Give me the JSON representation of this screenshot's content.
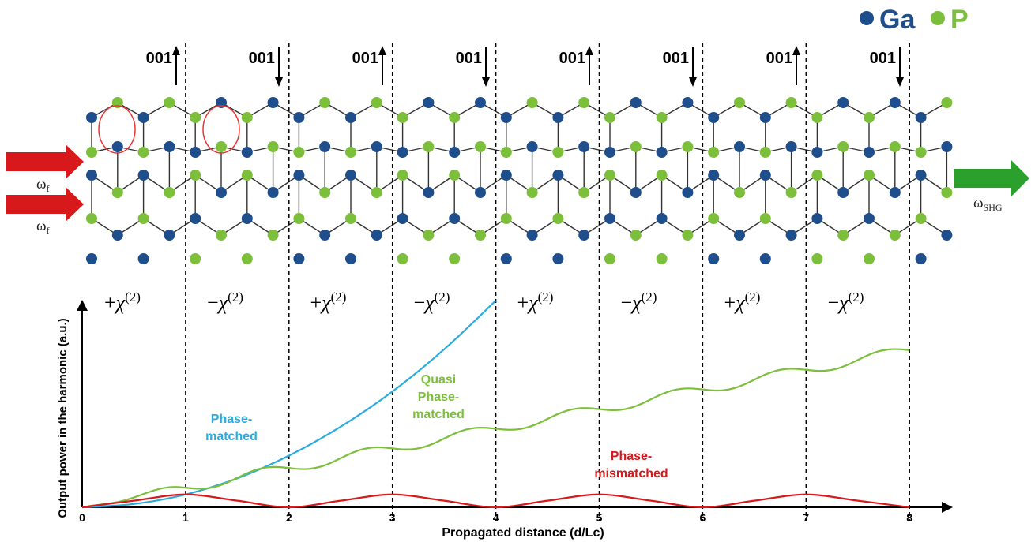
{
  "legend": {
    "ga_label": "Ga",
    "p_label": "P",
    "ga_color": "#1f4e8c",
    "p_color": "#7cbf3b"
  },
  "domains": {
    "orientation_labels": [
      "001",
      "001̅",
      "001",
      "001̅",
      "001",
      "001̅",
      "001",
      "001̅"
    ],
    "arrow_directions": [
      "up",
      "down",
      "up",
      "down",
      "up",
      "down",
      "up",
      "down"
    ],
    "chi_signs": [
      "+",
      "−",
      "+",
      "−",
      "+",
      "−",
      "+",
      "−"
    ],
    "chi_symbol": "χ",
    "chi_superscript": "(2)"
  },
  "beams": {
    "input_label_main": "ω",
    "input_label_sub": "f",
    "output_label_main": "ω",
    "output_label_sub": "SHG",
    "input_color": "#d7191c",
    "output_color": "#2ca02c"
  },
  "chart_data": {
    "type": "line",
    "xlabel": "Propagated distance (d/Lc)",
    "ylabel": "Output power in the harmonic (a.u.)",
    "x_ticks": [
      "0",
      "1",
      "2",
      "3",
      "4",
      "5",
      "6",
      "7",
      "8"
    ],
    "xlim": [
      0,
      8.5
    ],
    "ylim": [
      0,
      5
    ],
    "series": [
      {
        "name": "Phase-matched",
        "label_lines": [
          "Phase-",
          "matched"
        ],
        "color": "#29abe2",
        "x": [
          0,
          0.5,
          1,
          1.5,
          2,
          2.5,
          3,
          3.5,
          4
        ],
        "y": [
          0,
          0.08,
          0.31,
          0.7,
          1.25,
          1.95,
          2.8,
          3.82,
          5.0
        ]
      },
      {
        "name": "Quasi Phase-matched",
        "label_lines": [
          "Quasi",
          "Phase-",
          "matched"
        ],
        "color": "#7cbf3b",
        "x": [
          0,
          0.5,
          1,
          1.5,
          2,
          2.5,
          3,
          3.5,
          4,
          4.5,
          5,
          5.5,
          6,
          6.5,
          7,
          7.5,
          8
        ],
        "y": [
          0,
          0.12,
          0.31,
          0.55,
          0.8,
          1.05,
          1.3,
          1.55,
          1.8,
          2.05,
          2.3,
          2.55,
          2.8,
          3.05,
          3.3,
          3.55,
          3.8
        ]
      },
      {
        "name": "Phase-mismatched",
        "label_lines": [
          "Phase-",
          "mismatched"
        ],
        "color": "#d7191c",
        "x": [
          0,
          0.5,
          1,
          1.5,
          2,
          2.5,
          3,
          3.5,
          4,
          4.5,
          5,
          5.5,
          6,
          6.5,
          7,
          7.5,
          8
        ],
        "y": [
          0,
          0.16,
          0.31,
          0.16,
          0,
          0.16,
          0.31,
          0.16,
          0,
          0.16,
          0.31,
          0.16,
          0,
          0.16,
          0.31,
          0.16,
          0
        ]
      }
    ],
    "dashed_lines_at": [
      1,
      2,
      3,
      4,
      5,
      6,
      7,
      8
    ]
  }
}
